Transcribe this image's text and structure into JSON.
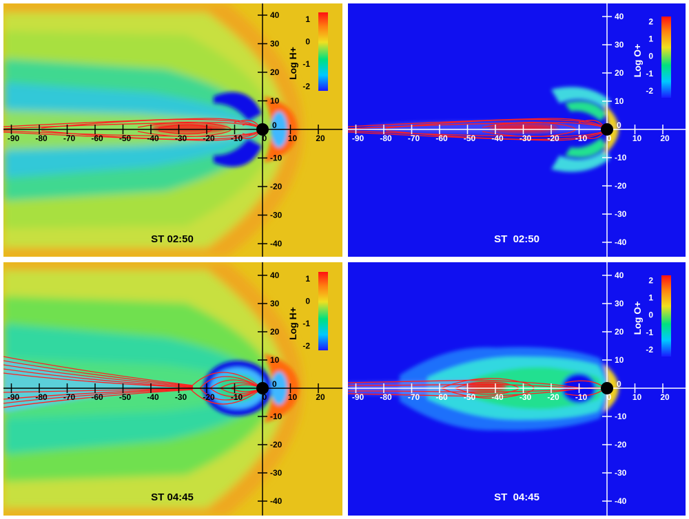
{
  "figure": {
    "panel_ids": [
      "h-0250",
      "o-0250",
      "h-0445",
      "o-0445"
    ],
    "colormap_stops": [
      "#1a1aff",
      "#00c8ff",
      "#00e080",
      "#f0e020",
      "#ff8010",
      "#ff1010"
    ],
    "background_colors": {
      "h": "#e8c21a",
      "o": "#1010f0"
    },
    "field_line_color": "#ff2020",
    "planet_color": "#000000"
  },
  "chart_data": [
    {
      "id": "h-0250",
      "type": "heatmap",
      "quantity": "Log H+",
      "time_label": "ST 02:50",
      "x_ticks": [
        "-90",
        "-80",
        "-70",
        "-60",
        "-50",
        "-40",
        "-30",
        "-20",
        "-10",
        "0",
        "10",
        "20"
      ],
      "x_tick_values": [
        -90,
        -80,
        -70,
        -60,
        -50,
        -40,
        -30,
        -20,
        -10,
        0,
        10,
        20
      ],
      "y_ticks": [
        "40",
        "30",
        "20",
        "10",
        "0",
        "-10",
        "-20",
        "-30",
        "-40"
      ],
      "y_tick_values": [
        40,
        30,
        20,
        10,
        0,
        -10,
        -20,
        -30,
        -40
      ],
      "colorbar_ticks": [
        "1",
        "0",
        "-1",
        "-2"
      ],
      "colorbar_tick_values": [
        1,
        0,
        -1,
        -2
      ],
      "colorbar_range": [
        -2.2,
        1.3
      ],
      "axis_color": "#000000",
      "label_color": "#000000"
    },
    {
      "id": "o-0250",
      "type": "heatmap",
      "quantity": "Log O+",
      "time_label": "ST  02:50",
      "x_ticks": [
        "-90",
        "-80",
        "-70",
        "-60",
        "-50",
        "-40",
        "-30",
        "-20",
        "-10",
        "0",
        "10",
        "20"
      ],
      "x_tick_values": [
        -90,
        -80,
        -70,
        -60,
        -50,
        -40,
        -30,
        -20,
        -10,
        0,
        10,
        20
      ],
      "y_ticks": [
        "40",
        "30",
        "20",
        "10",
        "0",
        "-10",
        "-20",
        "-30",
        "-40"
      ],
      "y_tick_values": [
        40,
        30,
        20,
        10,
        0,
        -10,
        -20,
        -30,
        -40
      ],
      "colorbar_ticks": [
        "2",
        "1",
        "0",
        "-1",
        "-2"
      ],
      "colorbar_tick_values": [
        2,
        1,
        0,
        -1,
        -2
      ],
      "colorbar_range": [
        -2.4,
        2.3
      ],
      "axis_color": "#ffffff",
      "label_color": "#ffffff"
    },
    {
      "id": "h-0445",
      "type": "heatmap",
      "quantity": "Log H+",
      "time_label": "ST 04:45",
      "x_ticks": [
        "-90",
        "-80",
        "-70",
        "-60",
        "-50",
        "-40",
        "-30",
        "-20",
        "-10",
        "0",
        "10",
        "20"
      ],
      "x_tick_values": [
        -90,
        -80,
        -70,
        -60,
        -50,
        -40,
        -30,
        -20,
        -10,
        0,
        10,
        20
      ],
      "y_ticks": [
        "40",
        "30",
        "20",
        "10",
        "0",
        "-10",
        "-20",
        "-30",
        "-40"
      ],
      "y_tick_values": [
        40,
        30,
        20,
        10,
        0,
        -10,
        -20,
        -30,
        -40
      ],
      "colorbar_ticks": [
        "1",
        "0",
        "-1",
        "-2"
      ],
      "colorbar_tick_values": [
        1,
        0,
        -1,
        -2
      ],
      "colorbar_range": [
        -2.2,
        1.3
      ],
      "axis_color": "#000000",
      "label_color": "#000000"
    },
    {
      "id": "o-0445",
      "type": "heatmap",
      "quantity": "Log O+",
      "time_label": "ST  04:45",
      "x_ticks": [
        "-90",
        "-80",
        "-70",
        "-60",
        "-50",
        "-40",
        "-30",
        "-20",
        "-10",
        "0",
        "10",
        "20"
      ],
      "x_tick_values": [
        -90,
        -80,
        -70,
        -60,
        -50,
        -40,
        -30,
        -20,
        -10,
        0,
        10,
        20
      ],
      "y_ticks": [
        "40",
        "30",
        "20",
        "10",
        "0",
        "-10",
        "-20",
        "-30",
        "-40"
      ],
      "y_tick_values": [
        40,
        30,
        20,
        10,
        0,
        -10,
        -20,
        -30,
        -40
      ],
      "colorbar_ticks": [
        "2",
        "1",
        "0",
        "-1",
        "-2"
      ],
      "colorbar_tick_values": [
        2,
        1,
        0,
        -1,
        -2
      ],
      "colorbar_range": [
        -2.4,
        2.3
      ],
      "axis_color": "#ffffff",
      "label_color": "#ffffff"
    }
  ]
}
